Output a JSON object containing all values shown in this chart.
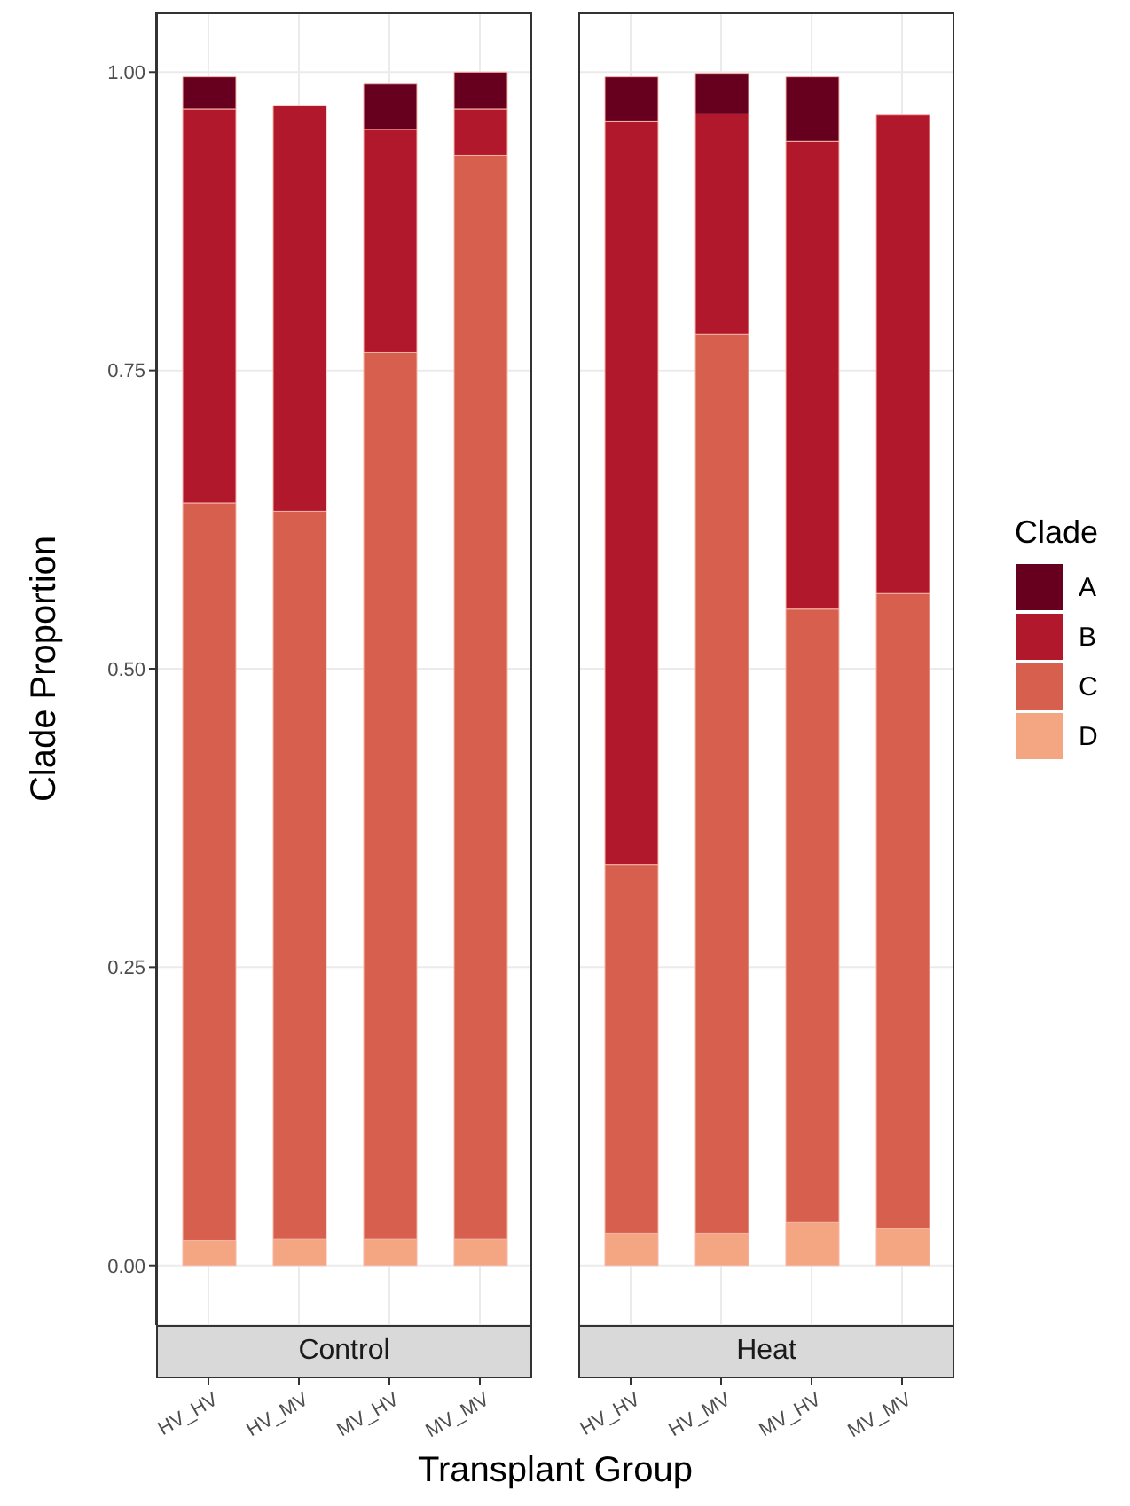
{
  "chart_data": [
    {
      "type": "bar",
      "title": "Control",
      "xlabel": "Transplant Group",
      "ylabel": "Clade Proportion",
      "stacked": true,
      "grid": true,
      "legend": "right",
      "legend_title": "Clade",
      "categories": [
        "HV_HV",
        "HV_MV",
        "MV_HV",
        "MV_MV"
      ],
      "series": [
        {
          "name": "D",
          "color": "#f4a582",
          "values": [
            0.021,
            0.022,
            0.022,
            0.022
          ]
        },
        {
          "name": "C",
          "color": "#d6604d",
          "values": [
            0.618,
            0.61,
            0.743,
            0.908
          ]
        },
        {
          "name": "B",
          "color": "#b2182b",
          "values": [
            0.33,
            0.34,
            0.187,
            0.039
          ]
        },
        {
          "name": "A",
          "color": "#67001f",
          "values": [
            0.027,
            0,
            0.038,
            0.031
          ]
        }
      ],
      "ylim": [
        -0.05,
        1.05
      ],
      "yticks": [
        {
          "value": 0,
          "label": "0.00"
        },
        {
          "value": 0.25,
          "label": "0.25"
        },
        {
          "value": 0.5,
          "label": "0.50"
        },
        {
          "value": 0.75,
          "label": "0.75"
        },
        {
          "value": 1,
          "label": "1.00"
        }
      ]
    },
    {
      "type": "bar",
      "title": "Heat",
      "stacked": true,
      "grid": true,
      "tick_labels": "x",
      "categories": [
        "HV_HV",
        "HV_MV",
        "MV_HV",
        "MV_MV"
      ],
      "series": [
        {
          "color": "#f4a582",
          "values": [
            0.027,
            0.027,
            0.036,
            0.031
          ]
        },
        {
          "color": "#d6604d",
          "values": [
            0.309,
            0.753,
            0.514,
            0.532
          ]
        },
        {
          "color": "#b2182b",
          "values": [
            0.623,
            0.185,
            0.392,
            0.401
          ]
        },
        {
          "color": "#67001f",
          "values": [
            0.037,
            0.034,
            0.054,
            0
          ]
        }
      ],
      "ylim": [
        -0.05,
        1.05
      ],
      "yticks": [
        0,
        0.25,
        0.5,
        0.75,
        1
      ]
    }
  ]
}
